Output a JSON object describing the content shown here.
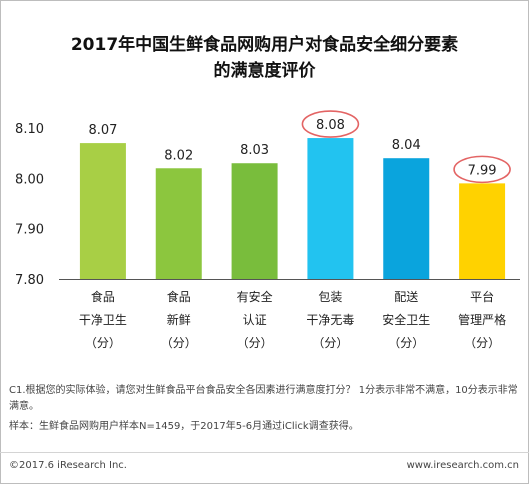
{
  "title_line1": "2017年中国生鲜食品网购用户对食品安全细分要素",
  "title_line2": "的满意度评价",
  "chart_data": {
    "type": "bar",
    "categories": [
      [
        "食品",
        "干净卫生",
        "（分）"
      ],
      [
        "食品",
        "新鲜",
        "（分）"
      ],
      [
        "有安全",
        "认证",
        "（分）"
      ],
      [
        "包装",
        "干净无毒",
        "（分）"
      ],
      [
        "配送",
        "安全卫生",
        "（分）"
      ],
      [
        "平台",
        "管理严格",
        "（分）"
      ]
    ],
    "values": [
      8.07,
      8.02,
      8.03,
      8.08,
      8.04,
      7.99
    ],
    "value_labels": [
      "8.07",
      "8.02",
      "8.03",
      "8.08",
      "8.04",
      "7.99"
    ],
    "bar_colors": [
      "#a8cf45",
      "#8cc63e",
      "#79bd3c",
      "#22c3f0",
      "#0aa4dd",
      "#ffd200"
    ],
    "highlighted": [
      3,
      5
    ],
    "highlight_color": "#e36464",
    "ylim": [
      7.8,
      8.1
    ],
    "yticks": [
      "7.80",
      "7.90",
      "8.00",
      "8.10"
    ],
    "ytick_values": [
      7.8,
      7.9,
      8.0,
      8.1
    ],
    "grid": false,
    "legend": "none"
  },
  "note_line1": "C1.根据您的实际体验，请您对生鲜食品平台食品安全各因素进行满意度打分？ 1分表示非常不满意，10分表示非常满意。",
  "note_line2": "样本：生鲜食品网购用户样本N=1459，于2017年5-6月通过iClick调查获得。",
  "footer_left": "©2017.6 iResearch Inc.",
  "footer_right": "www.iresearch.com.cn"
}
